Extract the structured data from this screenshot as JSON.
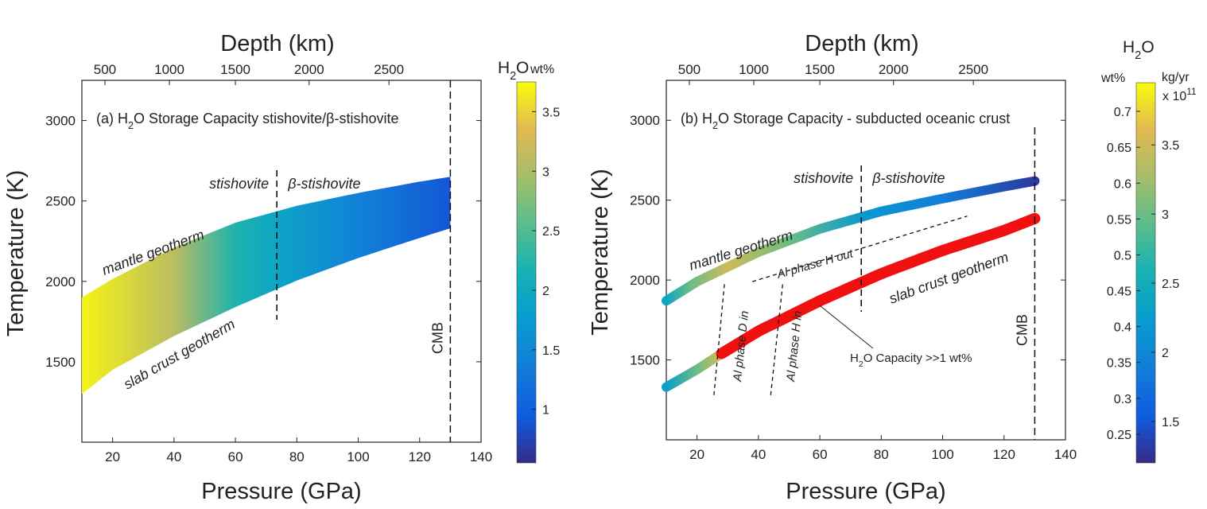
{
  "chart_data": [
    {
      "type": "area",
      "panel": "a",
      "annotation_title_prefix": "(a) H",
      "annotation_title_sub": "2",
      "annotation_title_rest": "O Storage Capacity stishovite/β-stishovite",
      "xlabel": "Pressure (GPa)",
      "ylabel": "Temperature (K)",
      "x2label": "Depth (km)",
      "xlim": [
        10,
        140
      ],
      "ylim": [
        1000,
        3250
      ],
      "xticks": [
        20,
        40,
        60,
        80,
        100,
        120,
        140
      ],
      "yticks": [
        1500,
        2000,
        2500,
        3000
      ],
      "depth_ticks": [
        {
          "label": "500",
          "pressure": 17.5
        },
        {
          "label": "1000",
          "pressure": 38.5
        },
        {
          "label": "1500",
          "pressure": 60
        },
        {
          "label": "2000",
          "pressure": 84
        },
        {
          "label": "2500",
          "pressure": 110
        }
      ],
      "series": [
        {
          "name": "mantle geotherm",
          "x": [
            10,
            20,
            40,
            60,
            80,
            100,
            120,
            130
          ],
          "y": [
            1900,
            2015,
            2210,
            2365,
            2470,
            2550,
            2620,
            2650
          ]
        },
        {
          "name": "slab crust geotherm",
          "x": [
            10,
            20,
            40,
            60,
            80,
            100,
            120,
            130
          ],
          "y": [
            1300,
            1450,
            1660,
            1840,
            2005,
            2145,
            2270,
            2330
          ]
        }
      ],
      "h2o_wt_pct": {
        "x": [
          10,
          40,
          60,
          74,
          100,
          130
        ],
        "values": [
          3.7,
          3.1,
          2.2,
          1.9,
          1.4,
          0.9
        ]
      },
      "phase_boundary": {
        "pressure": 73.5,
        "left_label": "stishovite",
        "right_label": "β-stishovite"
      },
      "cmb": {
        "pressure": 130,
        "label": "CMB"
      },
      "colorbar": {
        "title_main": "H",
        "title_sub": "2",
        "title_rest": "O wt%",
        "min": 0.55,
        "max": 3.75,
        "ticks": [
          "1",
          "1.5",
          "2",
          "2.5",
          "3",
          "3.5"
        ],
        "tick_values": [
          1,
          1.5,
          2,
          2.5,
          3,
          3.5
        ]
      }
    },
    {
      "type": "line",
      "panel": "b",
      "annotation_title_prefix": "(b) H",
      "annotation_title_sub": "2",
      "annotation_title_rest": "O Storage Capacity - subducted oceanic crust",
      "xlabel": "Pressure (GPa)",
      "ylabel": "Temperature (K)",
      "x2label": "Depth (km)",
      "xlim": [
        10,
        140
      ],
      "ylim": [
        1000,
        3250
      ],
      "xticks": [
        20,
        40,
        60,
        80,
        100,
        120,
        140
      ],
      "yticks": [
        1500,
        2000,
        2500,
        3000
      ],
      "depth_ticks": [
        {
          "label": "500",
          "pressure": 17.5
        },
        {
          "label": "1000",
          "pressure": 38.5
        },
        {
          "label": "1500",
          "pressure": 60
        },
        {
          "label": "2000",
          "pressure": 84
        },
        {
          "label": "2500",
          "pressure": 110
        }
      ],
      "series": [
        {
          "name": "mantle geotherm",
          "x": [
            10,
            20,
            40,
            60,
            80,
            100,
            120,
            130
          ],
          "y": [
            1870,
            1990,
            2175,
            2320,
            2430,
            2510,
            2585,
            2620
          ]
        },
        {
          "name": "slab crust geotherm",
          "x": [
            10,
            20,
            28,
            40,
            60,
            80,
            100,
            120,
            130
          ],
          "y": [
            1330,
            1440,
            1540,
            1680,
            1870,
            2040,
            2185,
            2310,
            2385
          ]
        }
      ],
      "mantle_h2o_wt_pct": {
        "x": [
          10,
          18,
          30,
          50,
          74,
          100,
          130
        ],
        "values": [
          2.4,
          3.0,
          3.5,
          3.0,
          2.2,
          1.9,
          1.3
        ]
      },
      "slab_h2o_wt_pct": {
        "x": [
          10,
          20,
          27
        ],
        "values": [
          2.3,
          3.0,
          3.5
        ]
      },
      "slab_saturated_from": 28,
      "slab_saturated_color": "#f01010",
      "phase_boundary": {
        "pressure": 73.5,
        "left_label": "stishovite",
        "right_label": "β-stishovite"
      },
      "cmb": {
        "pressure": 130,
        "label": "CMB"
      },
      "al_phase_H_out": {
        "label": "Al phase H out",
        "x": [
          38,
          108
        ],
        "y": [
          1990,
          2400
        ]
      },
      "al_phase_D_in": {
        "label": "Al phase D in",
        "x": [
          25.5,
          29
        ],
        "y": [
          1280,
          1990
        ]
      },
      "al_phase_H_in": {
        "label": "Al phase H in",
        "x": [
          44,
          48
        ],
        "y": [
          1280,
          1990
        ]
      },
      "capacity_note_prefix": "H",
      "capacity_note_sub": "2",
      "capacity_note_rest": "O Capacity >>1 wt%",
      "colorbar": {
        "title_main": "H",
        "title_sub": "2",
        "title_rest": "O",
        "left_label": "wt%",
        "right_label": "kg/yr",
        "right_scale": "x 10",
        "right_scale_exp": "11",
        "left_min": 0.21,
        "left_max": 0.74,
        "left_ticks": [
          "0.25",
          "0.3",
          "0.35",
          "0.4",
          "0.45",
          "0.5",
          "0.55",
          "0.6",
          "0.65",
          "0.7"
        ],
        "left_tick_values": [
          0.25,
          0.3,
          0.35,
          0.4,
          0.45,
          0.5,
          0.55,
          0.6,
          0.65,
          0.7
        ],
        "right_min": 1.2,
        "right_max": 3.95,
        "right_ticks": [
          "1.5",
          "2",
          "2.5",
          "3",
          "3.5"
        ],
        "right_tick_values": [
          1.5,
          2,
          2.5,
          3,
          3.5
        ]
      }
    }
  ]
}
